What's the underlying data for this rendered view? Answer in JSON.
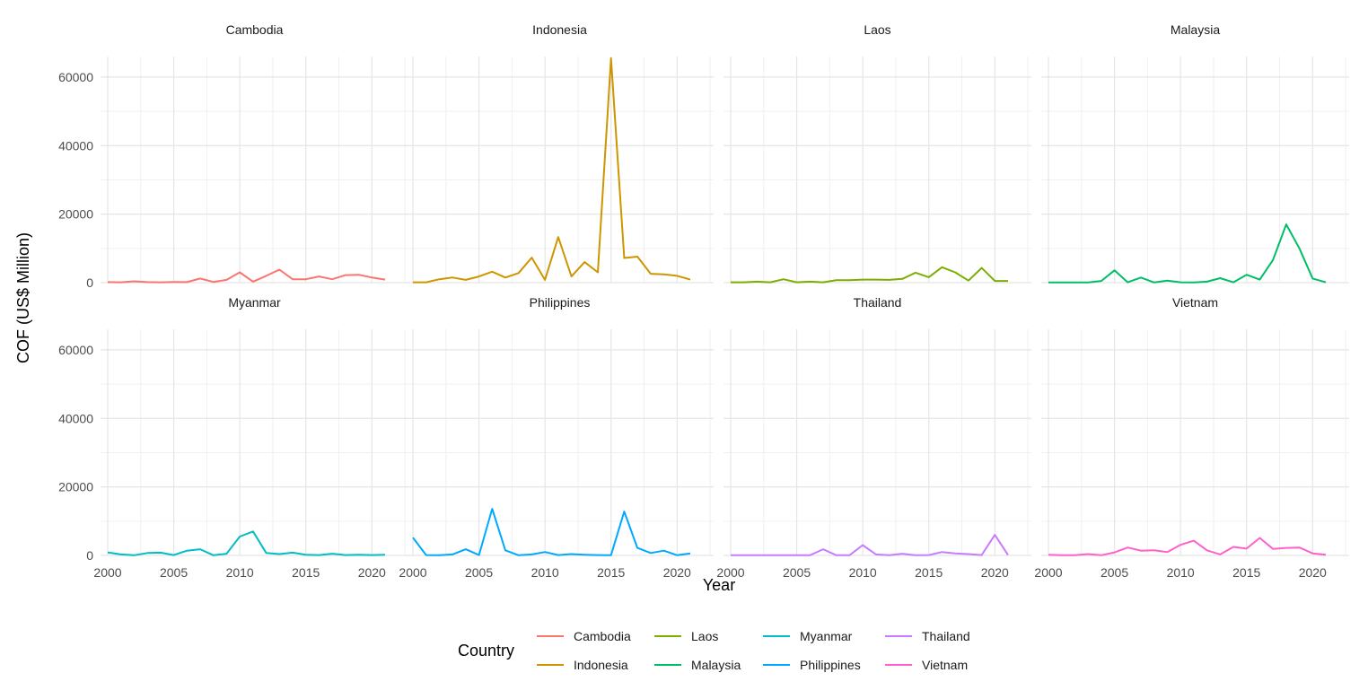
{
  "chart_data": {
    "type": "line",
    "facet_by": "country",
    "layout": {
      "rows": 2,
      "cols": 4
    },
    "xlabel": "Year",
    "ylabel": "COF (US$ Million)",
    "xlim": [
      2000,
      2021
    ],
    "ylim": [
      0,
      66000
    ],
    "x_ticks": [
      2000,
      2005,
      2010,
      2015,
      2020
    ],
    "y_ticks": [
      0,
      20000,
      40000,
      60000
    ],
    "grid": true,
    "legend": {
      "title": "Country",
      "placement": "bottom"
    },
    "x": [
      2000,
      2001,
      2002,
      2003,
      2004,
      2005,
      2006,
      2007,
      2008,
      2009,
      2010,
      2011,
      2012,
      2013,
      2014,
      2015,
      2016,
      2017,
      2018,
      2019,
      2020,
      2021
    ],
    "series": [
      {
        "name": "Cambodia",
        "color": "#F8766D",
        "values": [
          150,
          100,
          400,
          150,
          100,
          200,
          150,
          1200,
          200,
          800,
          3000,
          300,
          2000,
          3800,
          1000,
          1000,
          1800,
          1000,
          2200,
          2300,
          1500,
          900
        ]
      },
      {
        "name": "Indonesia",
        "color": "#CD9600",
        "values": [
          100,
          100,
          1000,
          1500,
          800,
          1800,
          3200,
          1500,
          2800,
          7300,
          800,
          13300,
          1800,
          6000,
          3000,
          65500,
          7200,
          7600,
          2600,
          2400,
          2000,
          900
        ]
      },
      {
        "name": "Laos",
        "color": "#7CAE00",
        "values": [
          100,
          100,
          300,
          100,
          1000,
          100,
          300,
          100,
          700,
          700,
          900,
          900,
          800,
          1100,
          2900,
          1600,
          4500,
          3000,
          600,
          4300,
          500,
          500
        ]
      },
      {
        "name": "Malaysia",
        "color": "#00BE67",
        "values": [
          50,
          50,
          50,
          50,
          500,
          3600,
          100,
          1500,
          50,
          600,
          100,
          50,
          300,
          1300,
          100,
          2300,
          900,
          6600,
          17000,
          10000,
          1200,
          100
        ]
      },
      {
        "name": "Myanmar",
        "color": "#00BFC4",
        "values": [
          900,
          300,
          50,
          700,
          800,
          100,
          1400,
          1800,
          50,
          500,
          5500,
          7000,
          700,
          400,
          800,
          200,
          100,
          500,
          100,
          200,
          100,
          200
        ]
      },
      {
        "name": "Philippines",
        "color": "#00A9FF",
        "values": [
          5200,
          100,
          50,
          300,
          1800,
          100,
          13600,
          1500,
          50,
          300,
          1000,
          100,
          400,
          200,
          100,
          50,
          12800,
          2200,
          700,
          1400,
          50,
          600
        ]
      },
      {
        "name": "Thailand",
        "color": "#C77CFF",
        "values": [
          50,
          50,
          50,
          50,
          50,
          50,
          50,
          1800,
          50,
          50,
          3000,
          300,
          50,
          500,
          50,
          100,
          1000,
          600,
          400,
          100,
          6000,
          100
        ]
      },
      {
        "name": "Vietnam",
        "color": "#FF61CC",
        "values": [
          200,
          50,
          50,
          400,
          50,
          900,
          2300,
          1400,
          1500,
          1000,
          3100,
          4300,
          1500,
          300,
          2500,
          2000,
          5100,
          1900,
          2200,
          2300,
          600,
          200
        ]
      }
    ]
  }
}
